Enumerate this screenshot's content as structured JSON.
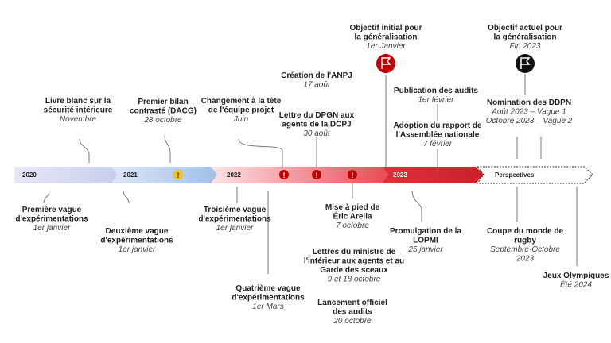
{
  "timeline": {
    "segments": [
      "2020",
      "2021",
      "2022",
      "2023",
      "Perspectives"
    ],
    "events": [
      {
        "title": [
          "Livre blanc sur la",
          "sécurité intérieure"
        ],
        "date": [
          "Novembre"
        ]
      },
      {
        "title": [
          "Premier bilan",
          "contrasté (DACG)"
        ],
        "date": [
          "28 octobre"
        ]
      },
      {
        "title": [
          "Changement à la tête",
          "de l'équipe projet"
        ],
        "date": [
          "Juin"
        ]
      },
      {
        "title": [
          "Création de l'ANPJ"
        ],
        "date": [
          "17 août"
        ]
      },
      {
        "title": [
          "Lettre du DPGN aux",
          "agents de la DCPJ"
        ],
        "date": [
          "30 août"
        ]
      },
      {
        "title": [
          "Objectif initial pour",
          "la généralisation"
        ],
        "date": [
          "1er Janvier"
        ]
      },
      {
        "title": [
          "Publication des audits"
        ],
        "date": [
          "1er février"
        ]
      },
      {
        "title": [
          "Adoption du rapport de",
          "l'Assemblée nationale"
        ],
        "date": [
          "7 février"
        ]
      },
      {
        "title": [
          "Objectif actuel pour",
          "la généralisation"
        ],
        "date": [
          "Fin 2023"
        ]
      },
      {
        "title": [
          "Nomination des DDPN"
        ],
        "date": [
          "Août 2023 – Vague 1",
          "Octobre 2023 – Vague 2"
        ]
      },
      {
        "title": [
          "Première vague",
          "d'expérimentations"
        ],
        "date": [
          "1er janvier"
        ]
      },
      {
        "title": [
          "Deuxième vague",
          "d'expérimentations"
        ],
        "date": [
          "1er janvier"
        ]
      },
      {
        "title": [
          "Troisième vague",
          "d'expérimentations"
        ],
        "date": [
          "1er janvier"
        ]
      },
      {
        "title": [
          "Quatrième vague",
          "d'expérimentations"
        ],
        "date": [
          "1er Mars"
        ]
      },
      {
        "title": [
          "Mise à pied de",
          "Éric Arella"
        ],
        "date": [
          "7 octobre"
        ]
      },
      {
        "title": [
          "Lettres du ministre de",
          "l'intérieur aux agents et au",
          "Garde des sceaux"
        ],
        "date": [
          "9 et 18 octobre"
        ]
      },
      {
        "title": [
          "Lancement officiel",
          "des audits"
        ],
        "date": [
          "20 octobre"
        ]
      },
      {
        "title": [
          "Promulgation de la",
          "LOPMI"
        ],
        "date": [
          "25 janvier"
        ]
      },
      {
        "title": [
          "Coupe du monde de",
          "rugby"
        ],
        "date": [
          "Septembre-Octobre",
          "2023"
        ]
      },
      {
        "title": [
          "Jeux Olympiques"
        ],
        "date": [
          "Été 2024"
        ]
      }
    ]
  }
}
